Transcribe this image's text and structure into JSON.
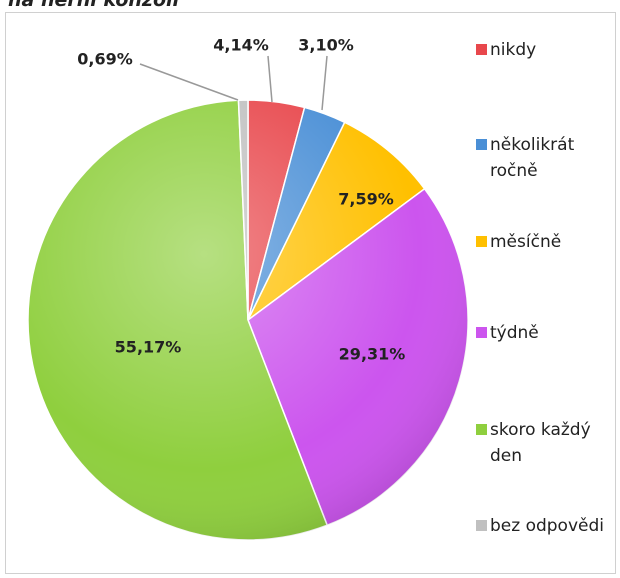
{
  "chart_data": {
    "type": "pie",
    "title": "na herní konzoli",
    "categories": [
      "nikdy",
      "několikrát ročně",
      "měsíčně",
      "týdně",
      "skoro každý den",
      "bez odpovědi"
    ],
    "values": [
      4.14,
      3.1,
      7.59,
      29.31,
      55.17,
      0.69
    ],
    "value_labels": [
      "4,14%",
      "3,10%",
      "7,59%",
      "29,31%",
      "55,17%",
      "0,69%"
    ],
    "colors": [
      "#e8474c",
      "#4a8fd6",
      "#ffc000",
      "#cc55ee",
      "#8fcf3e",
      "#c0c0c0"
    ],
    "legend": "right"
  }
}
